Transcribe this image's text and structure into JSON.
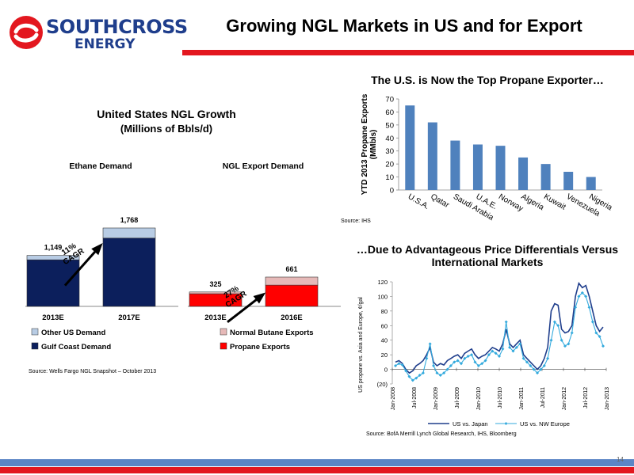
{
  "header": {
    "logo_line1": "SOUTHCROSS",
    "logo_line2": "ENERGY",
    "title": "Growing NGL Markets in US and for Export"
  },
  "left_panel": {
    "title": "United States NGL Growth",
    "subtitle": "(Millions of Bbls/d)",
    "source": "Source: Wells Fargo NGL Snapshot – October 2013"
  },
  "top_right": {
    "title": "The U.S. is Now the Top Propane Exporter…",
    "source": "Source: IHS"
  },
  "bottom_right": {
    "title": "…Due to Advantageous Price Differentials Versus International Markets",
    "source": "Source: BofA Merrill Lynch Global Research, IHS, Bloomberg"
  },
  "page_number": "14",
  "colors": {
    "navy": "#0c1f5c",
    "light_blue": "#b8cce4",
    "red": "#ff0000",
    "pink": "#e6b9b8",
    "bar_blue": "#4f81bd",
    "brand_red": "#e3171f"
  },
  "chart_data": [
    {
      "type": "bar",
      "stacked": true,
      "title": "Ethane Demand",
      "categories": [
        "2013E",
        "2017E"
      ],
      "series": [
        {
          "name": "Gulf Coast Demand",
          "values": [
            1050,
            1540
          ]
        },
        {
          "name": "Other US Demand",
          "values": [
            99,
            228
          ]
        }
      ],
      "totals": [
        "1,149",
        "1,768"
      ],
      "annotation": "11% CAGR"
    },
    {
      "type": "bar",
      "stacked": true,
      "title": "NGL Export Demand",
      "categories": [
        "2013E",
        "2016E"
      ],
      "series": [
        {
          "name": "Propane Exports",
          "values": [
            285,
            480
          ]
        },
        {
          "name": "Normal Butane Exports",
          "values": [
            40,
            181
          ]
        }
      ],
      "totals": [
        "325",
        "661"
      ],
      "annotation": "27% CAGR"
    },
    {
      "type": "bar",
      "categories": [
        "U.S.A.",
        "Qatar",
        "Saudi Arabia",
        "U.A.E.",
        "Norway",
        "Algeria",
        "Kuwait",
        "Venezuela",
        "Nigeria"
      ],
      "values": [
        65,
        52,
        38,
        35,
        34,
        25,
        20,
        14,
        10
      ],
      "ylabel": "YTD 2013  Propane Exports (MMbls)",
      "ylim": [
        0,
        70
      ],
      "yticks": [
        "0",
        "10",
        "20",
        "30",
        "40",
        "50",
        "60",
        "70"
      ]
    },
    {
      "type": "line",
      "ylabel": "US propane vs. Asia and Europe, ¢/gal",
      "ylim": [
        -20,
        120
      ],
      "yticks": [
        "(20)",
        "0",
        "20",
        "40",
        "60",
        "80",
        "100",
        "120"
      ],
      "xticks": [
        "Jan-2008",
        "Jul-2008",
        "Jan-2009",
        "Jul-2009",
        "Jan-2010",
        "Jul-2010",
        "Jan-2011",
        "Jul-2011",
        "Jan-2012",
        "Jul-2012",
        "Jan-2013"
      ],
      "series": [
        {
          "name": "US vs. Japan",
          "values": [
            10,
            12,
            8,
            0,
            -5,
            -2,
            5,
            8,
            12,
            20,
            30,
            10,
            5,
            8,
            6,
            12,
            15,
            18,
            20,
            15,
            22,
            25,
            28,
            20,
            15,
            18,
            20,
            25,
            30,
            28,
            25,
            35,
            55,
            35,
            30,
            35,
            40,
            20,
            15,
            10,
            5,
            0,
            5,
            15,
            30,
            80,
            90,
            88,
            55,
            50,
            52,
            60,
            100,
            118,
            112,
            115,
            100,
            80,
            60,
            52,
            58
          ]
        },
        {
          "name": "US vs. NW Europe",
          "values": [
            5,
            8,
            6,
            -2,
            -10,
            -15,
            -12,
            -8,
            -5,
            15,
            35,
            5,
            -5,
            -8,
            -5,
            0,
            5,
            10,
            12,
            8,
            15,
            18,
            20,
            10,
            5,
            8,
            12,
            20,
            25,
            22,
            18,
            28,
            65,
            30,
            25,
            30,
            35,
            15,
            10,
            5,
            0,
            -5,
            0,
            5,
            15,
            40,
            65,
            60,
            40,
            32,
            35,
            50,
            85,
            100,
            105,
            100,
            85,
            65,
            50,
            45,
            32
          ]
        }
      ]
    }
  ]
}
